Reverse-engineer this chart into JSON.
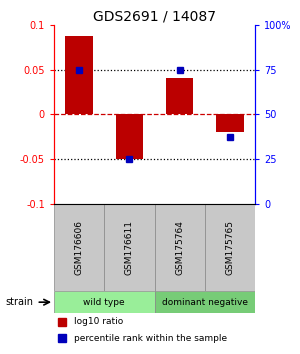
{
  "title": "GDS2691 / 14087",
  "samples": [
    "GSM176606",
    "GSM176611",
    "GSM175764",
    "GSM175765"
  ],
  "log10_ratio": [
    0.088,
    -0.05,
    0.04,
    -0.02
  ],
  "percentile_rank": [
    0.75,
    0.25,
    0.75,
    0.375
  ],
  "groups": [
    {
      "name": "wild type",
      "samples": [
        0,
        1
      ],
      "color": "#99EE99"
    },
    {
      "name": "dominant negative",
      "samples": [
        2,
        3
      ],
      "color": "#77CC77"
    }
  ],
  "ylim": [
    -0.1,
    0.1
  ],
  "yticks_left": [
    -0.1,
    -0.05,
    0,
    0.05,
    0.1
  ],
  "yticks_right_vals": [
    0,
    25,
    50,
    75,
    100
  ],
  "yticks_right_labels": [
    "0",
    "25",
    "50",
    "75",
    "100%"
  ],
  "hlines_dotted": [
    -0.05,
    0.05
  ],
  "hline_zero": 0,
  "bar_color": "#BB0000",
  "dot_color": "#0000BB",
  "zero_line_color": "#CC0000",
  "label_log10": "log10 ratio",
  "label_percentile": "percentile rank within the sample",
  "strain_label": "strain",
  "bar_width": 0.55,
  "sample_box_color": "#C8C8C8",
  "border_color": "#888888"
}
